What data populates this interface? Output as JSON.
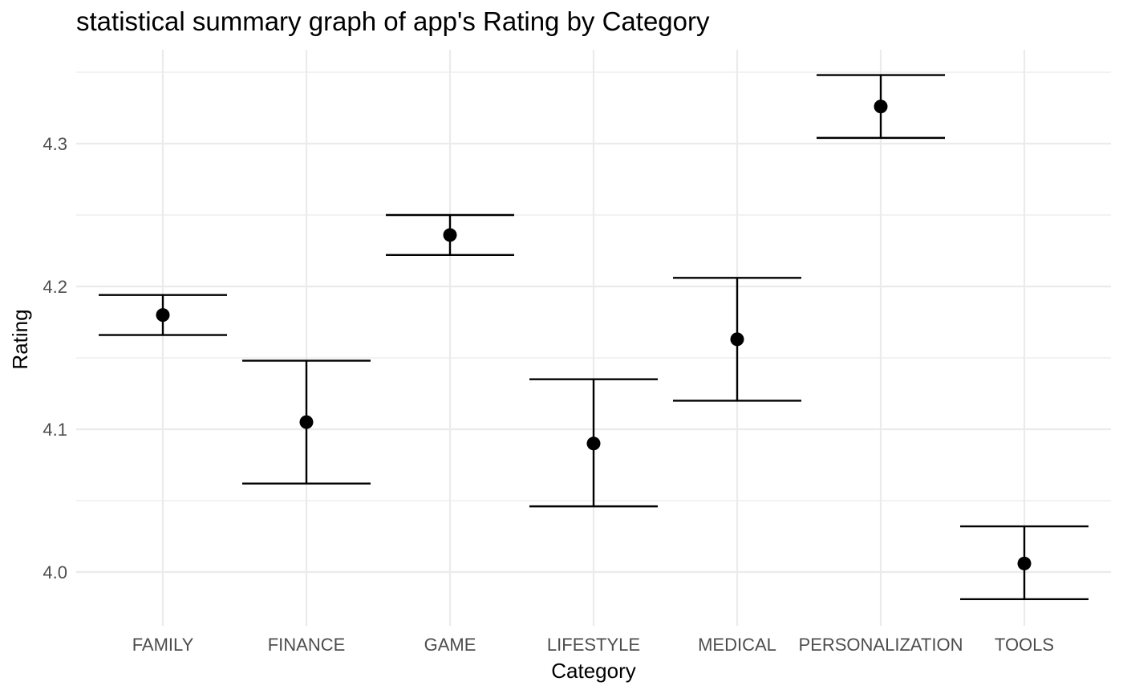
{
  "chart_data": {
    "type": "scatter",
    "title": "statistical summary graph of app's Rating by Category",
    "xlabel": "Category",
    "ylabel": "Rating",
    "categories": [
      "FAMILY",
      "FINANCE",
      "GAME",
      "LIFESTYLE",
      "MEDICAL",
      "PERSONALIZATION",
      "TOOLS"
    ],
    "series": [
      {
        "values": [
          4.18,
          4.105,
          4.236,
          4.09,
          4.163,
          4.326,
          4.006
        ],
        "ymin": [
          4.166,
          4.062,
          4.222,
          4.046,
          4.12,
          4.304,
          3.981
        ],
        "ymax": [
          4.194,
          4.148,
          4.25,
          4.135,
          4.206,
          4.348,
          4.032
        ]
      }
    ],
    "yticks": [
      "4.0",
      "4.1",
      "4.2",
      "4.3"
    ],
    "ylim": [
      3.962,
      4.366
    ],
    "grid": true,
    "legend": "none",
    "colors": {
      "point": "#000000",
      "errorbar": "#000000",
      "grid": "#ebebeb"
    }
  }
}
